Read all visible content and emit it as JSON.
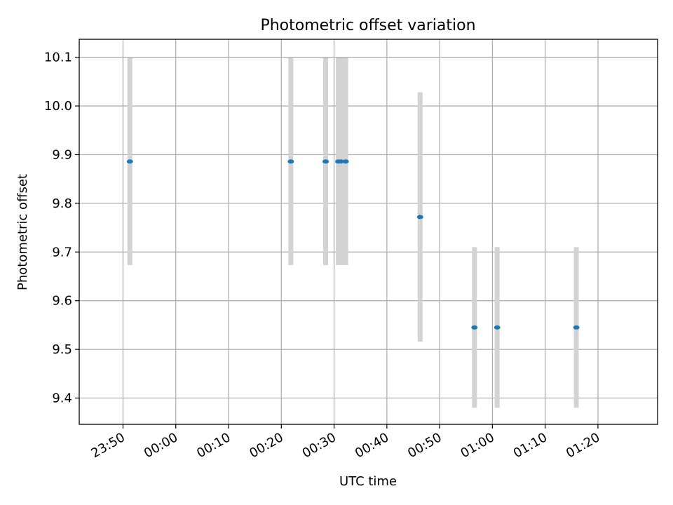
{
  "chart_data": {
    "type": "scatter",
    "title": "Photometric offset variation",
    "xlabel": "UTC time",
    "ylabel": "Photometric offset",
    "grid": true,
    "x_range_minutes": [
      -18.3,
      91.3
    ],
    "x_ticks": [
      {
        "minutes": -10,
        "label": "23:50"
      },
      {
        "minutes": 0,
        "label": "00:00"
      },
      {
        "minutes": 10,
        "label": "00:10"
      },
      {
        "minutes": 20,
        "label": "00:20"
      },
      {
        "minutes": 30,
        "label": "00:30"
      },
      {
        "minutes": 40,
        "label": "00:40"
      },
      {
        "minutes": 50,
        "label": "00:50"
      },
      {
        "minutes": 60,
        "label": "01:00"
      },
      {
        "minutes": 70,
        "label": "01:10"
      },
      {
        "minutes": 80,
        "label": "01:20"
      }
    ],
    "ylim": [
      9.346,
      10.137
    ],
    "y_ticks": [
      {
        "value": 9.4,
        "label": "9.4"
      },
      {
        "value": 9.5,
        "label": "9.5"
      },
      {
        "value": 9.6,
        "label": "9.6"
      },
      {
        "value": 9.7,
        "label": "9.7"
      },
      {
        "value": 9.8,
        "label": "9.8"
      },
      {
        "value": 9.9,
        "label": "9.9"
      },
      {
        "value": 10.0,
        "label": "10.0"
      },
      {
        "value": 10.1,
        "label": "10.1"
      }
    ],
    "series": [
      {
        "name": "Photometric offset",
        "marker_color": "#1f77b4",
        "errorbar_color": "#d3d3d3",
        "points": [
          {
            "minutes": -8.7,
            "y": 9.886,
            "err": 0.213
          },
          {
            "minutes": 21.8,
            "y": 9.886,
            "err": 0.213
          },
          {
            "minutes": 28.4,
            "y": 9.886,
            "err": 0.213
          },
          {
            "minutes": 30.8,
            "y": 9.886,
            "err": 0.213
          },
          {
            "minutes": 31.3,
            "y": 9.886,
            "err": 0.213
          },
          {
            "minutes": 32.2,
            "y": 9.886,
            "err": 0.213
          },
          {
            "minutes": 46.3,
            "y": 9.772,
            "err": 0.256
          },
          {
            "minutes": 56.6,
            "y": 9.545,
            "err": 0.165
          },
          {
            "minutes": 60.9,
            "y": 9.545,
            "err": 0.165
          },
          {
            "minutes": 75.9,
            "y": 9.545,
            "err": 0.165
          }
        ]
      }
    ]
  }
}
